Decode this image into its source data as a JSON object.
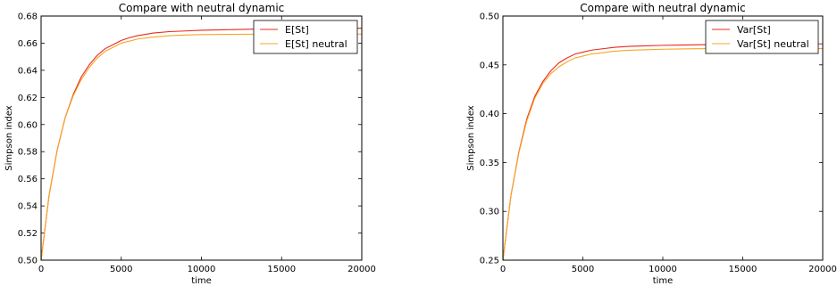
{
  "chart_data": [
    {
      "type": "line",
      "title": "Compare with neutral dynamic",
      "xlabel": "time",
      "ylabel": "Simpson index",
      "xlim": [
        0,
        20000
      ],
      "ylim": [
        0.5,
        0.68
      ],
      "xticks": [
        0,
        5000,
        10000,
        15000,
        20000
      ],
      "yticks": [
        0.5,
        0.52,
        0.54,
        0.56,
        0.58,
        0.6,
        0.62,
        0.64,
        0.66,
        0.68
      ],
      "grid": false,
      "legend": "top-right",
      "x": [
        0,
        500,
        1000,
        1500,
        2000,
        2500,
        3000,
        3500,
        4000,
        4500,
        5000,
        5500,
        6000,
        7000,
        8000,
        9000,
        10000,
        12000,
        14000,
        16000,
        18000,
        20000
      ],
      "series": [
        {
          "name": "E[St]",
          "color": "#e8281e",
          "values": [
            0.5,
            0.548,
            0.581,
            0.605,
            0.622,
            0.635,
            0.644,
            0.651,
            0.656,
            0.659,
            0.662,
            0.664,
            0.6655,
            0.6675,
            0.6685,
            0.669,
            0.6695,
            0.67,
            0.6705,
            0.6705,
            0.671,
            0.671
          ]
        },
        {
          "name": "E[St] neutral",
          "color": "#f5a623",
          "values": [
            0.5,
            0.548,
            0.581,
            0.605,
            0.621,
            0.633,
            0.642,
            0.649,
            0.654,
            0.657,
            0.66,
            0.6615,
            0.663,
            0.6645,
            0.6655,
            0.666,
            0.6663,
            0.6665,
            0.6667,
            0.6667,
            0.6667,
            0.6667
          ]
        }
      ]
    },
    {
      "type": "line",
      "title": "Compare with neutral dynamic",
      "xlabel": "time",
      "ylabel": "Simpson index",
      "xlim": [
        0,
        20000
      ],
      "ylim": [
        0.25,
        0.5
      ],
      "xticks": [
        0,
        5000,
        10000,
        15000,
        20000
      ],
      "yticks": [
        0.25,
        0.3,
        0.35,
        0.4,
        0.45,
        0.5
      ],
      "grid": false,
      "legend": "top-right",
      "x": [
        0,
        500,
        1000,
        1500,
        2000,
        2500,
        3000,
        3500,
        4000,
        4500,
        5000,
        5500,
        6000,
        7000,
        8000,
        9000,
        10000,
        12000,
        14000,
        16000,
        18000,
        20000
      ],
      "series": [
        {
          "name": "Var[St]",
          "color": "#e8281e",
          "values": [
            0.25,
            0.316,
            0.361,
            0.395,
            0.418,
            0.433,
            0.444,
            0.452,
            0.457,
            0.461,
            0.463,
            0.465,
            0.466,
            0.468,
            0.469,
            0.4695,
            0.47,
            0.4705,
            0.471,
            0.471,
            0.4712,
            0.4715
          ]
        },
        {
          "name": "Var[St] neutral",
          "color": "#f5a623",
          "values": [
            0.25,
            0.316,
            0.36,
            0.393,
            0.416,
            0.431,
            0.441,
            0.448,
            0.453,
            0.457,
            0.459,
            0.461,
            0.462,
            0.464,
            0.465,
            0.4655,
            0.466,
            0.4665,
            0.4667,
            0.4667,
            0.4667,
            0.4667
          ]
        }
      ]
    }
  ]
}
